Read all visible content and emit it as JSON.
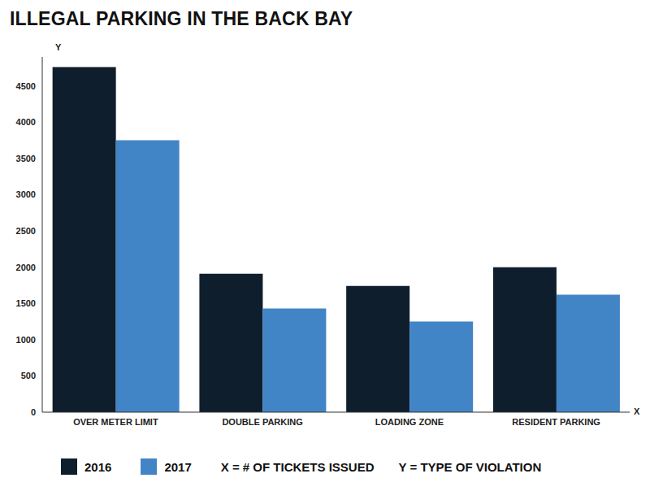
{
  "chart_data": {
    "type": "bar",
    "title": "ILLEGAL PARKING IN THE BACK BAY",
    "x_label": "X",
    "y_label": "Y",
    "categories": [
      "OVER METER LIMIT",
      "DOUBLE PARKING",
      "LOADING ZONE",
      "RESIDENT PARKING"
    ],
    "series": [
      {
        "name": "2016",
        "color": "#0f1e2d",
        "values": [
          4760,
          1910,
          1740,
          2000
        ]
      },
      {
        "name": "2017",
        "color": "#4285c6",
        "values": [
          3750,
          1430,
          1250,
          1620
        ]
      }
    ],
    "annotations": [
      "X = # OF TICKETS ISSUED",
      "Y = TYPE OF VIOLATION"
    ],
    "ylim": [
      0,
      4900
    ],
    "yticks": [
      0,
      500,
      1000,
      1500,
      2000,
      2500,
      3000,
      3500,
      4000,
      4500
    ],
    "grid": false
  }
}
